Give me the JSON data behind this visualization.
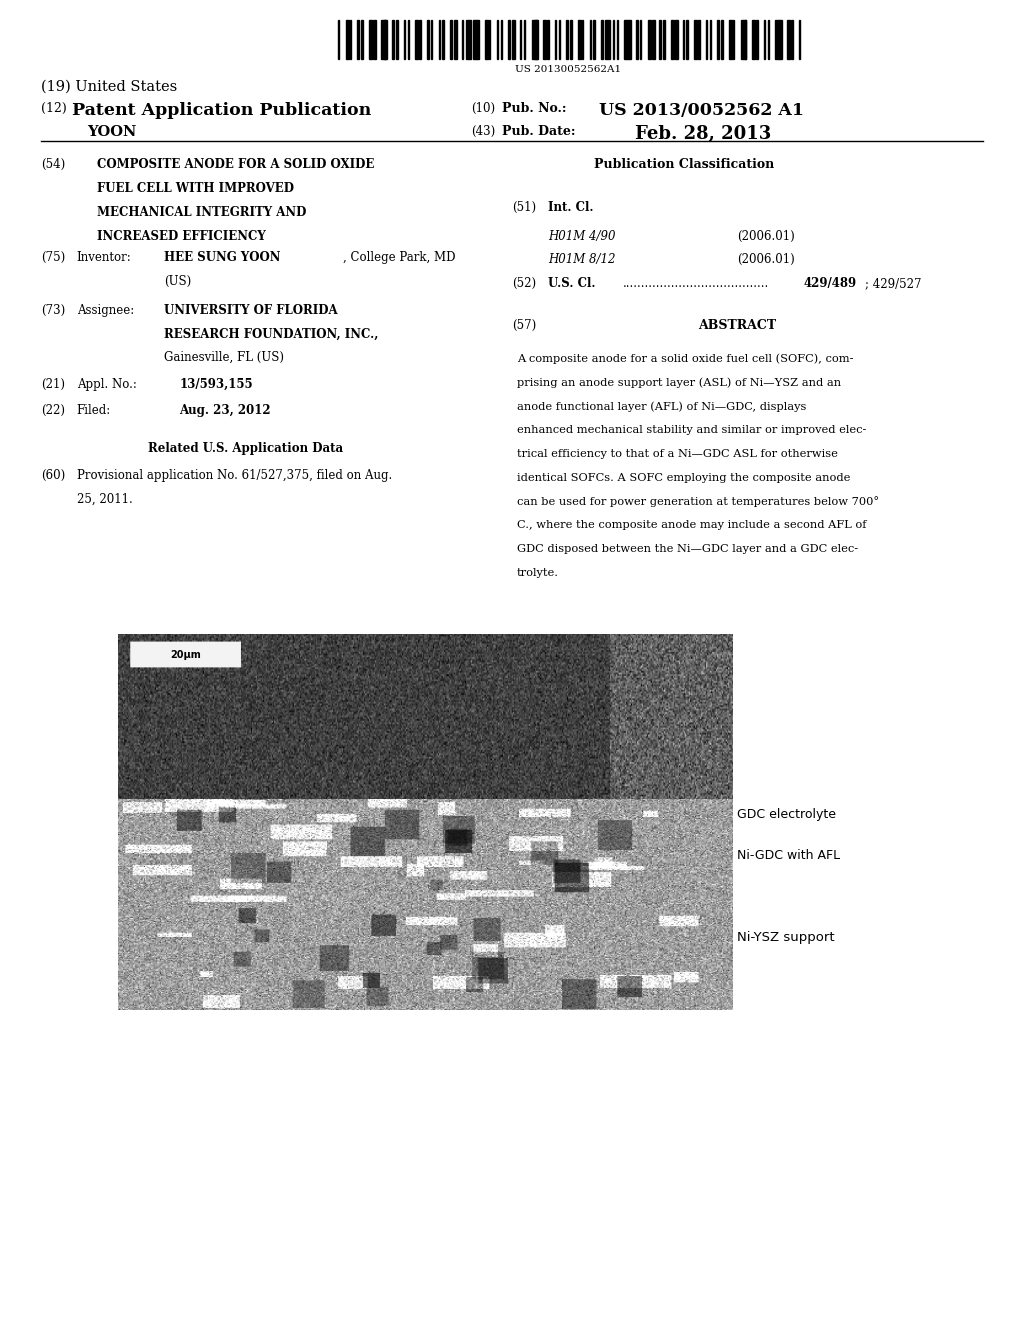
{
  "background_color": "#ffffff",
  "barcode_text": "US 20130052562A1",
  "header_line1_left": "(19) United States",
  "header_line2_left_num": "(12)",
  "header_line2_left_bold": "Patent Application Publication",
  "header_line2_right_num": "(10)",
  "header_line2_right_label": "Pub. No.:",
  "header_line2_right_bold": "US 2013/0052562 A1",
  "header_line3_right_num": "(43)",
  "header_line3_right_label": "Pub. Date:",
  "header_line3_right_bold": "Feb. 28, 2013",
  "section54_num": "(54)",
  "section75_num": "(75)",
  "section73_num": "(73)",
  "section21_num": "(21)",
  "section22_num": "(22)",
  "section60_num": "(60)",
  "section51_num": "(51)",
  "section52_num": "(52)",
  "section57_num": "(57)",
  "label_gdc": "GDC electrolyte",
  "label_nigdc": "Ni-GDC with AFL",
  "label_niysz": "Ni-YSZ support",
  "scale_bar_text": "20μm",
  "abstract_lines": [
    "A composite anode for a solid oxide fuel cell (SOFC), com-",
    "prising an anode support layer (ASL) of Ni—YSZ and an",
    "anode functional layer (AFL) of Ni—GDC, displays",
    "enhanced mechanical stability and similar or improved elec-",
    "trical efficiency to that of a Ni—GDC ASL for otherwise",
    "identical SOFCs. A SOFC employing the composite anode",
    "can be used for power generation at temperatures below 700°",
    "C., where the composite anode may include a second AFL of",
    "GDC disposed between the Ni—GDC layer and a GDC elec-",
    "trolyte."
  ]
}
